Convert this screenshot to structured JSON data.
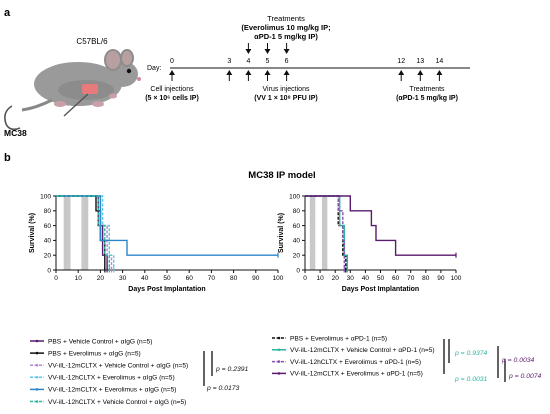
{
  "panel_a": {
    "label": "a",
    "mouse_strain": "C57BL/6",
    "tumor_label": "MC38",
    "day_prefix": "Day:",
    "top_event": {
      "title": "Treatments",
      "line1": "(Everolimus 10 mg/kg IP;",
      "line2": "αPD-1 5 mg/kg IP)"
    },
    "events": [
      {
        "line1": "Cell injections",
        "line2": "(5 × 10⁶ cells IP)"
      },
      {
        "line1": "Virus injections",
        "line2": "(VV 1 × 10⁸ PFU IP)"
      },
      {
        "line1": "Treatments",
        "line2": "(αPD-1 5 mg/kg IP)"
      }
    ],
    "days": [
      {
        "day": 0,
        "label": "0",
        "up": true,
        "down": false
      },
      {
        "day": 3,
        "label": "3",
        "up": true,
        "down": false
      },
      {
        "day": 4,
        "label": "4",
        "up": true,
        "down": true
      },
      {
        "day": 5,
        "label": "5",
        "up": true,
        "down": true
      },
      {
        "day": 6,
        "label": "6",
        "up": true,
        "down": true
      },
      {
        "day": 12,
        "label": "12",
        "up": true,
        "down": false
      },
      {
        "day": 13,
        "label": "13",
        "up": true,
        "down": false
      },
      {
        "day": 14,
        "label": "14",
        "up": true,
        "down": false
      }
    ]
  },
  "panel_b": {
    "label": "b",
    "title": "MC38 IP model",
    "p_values_left": [
      "p = 0.2391",
      "p = 0.0173"
    ],
    "p_values_right": [
      "p = 0.9374",
      "p = 0.0031",
      "p = 0.0034",
      "p = 0.0074"
    ],
    "p_colors": {
      "teal": "#2bb5a3",
      "purple": "#5a1a6e",
      "black": "#111111"
    }
  },
  "chart_data": [
    {
      "type": "line",
      "step": true,
      "xlabel": "Days Post Implantation",
      "ylabel": "Survival (%)",
      "xlim": [
        0,
        100
      ],
      "ylim": [
        0,
        100
      ],
      "xticks": [
        0,
        10,
        20,
        30,
        40,
        50,
        60,
        70,
        80,
        90,
        100
      ],
      "yticks": [
        0,
        20,
        40,
        60,
        80,
        100
      ],
      "treatment_days": [
        4,
        5,
        6,
        12,
        13,
        14
      ],
      "series": [
        {
          "name": "PBS + Vehicle Control + αIgG (n=5)",
          "color": "#5a1a6e",
          "dashed": false,
          "x": [
            0,
            19,
            19,
            21,
            21,
            23,
            23
          ],
          "y": [
            100,
            100,
            60,
            60,
            20,
            20,
            0
          ]
        },
        {
          "name": "PBS + Everolimus + αIgG (n=5)",
          "color": "#111111",
          "dashed": false,
          "x": [
            0,
            18,
            18,
            20,
            20,
            22,
            22
          ],
          "y": [
            100,
            100,
            80,
            80,
            40,
            40,
            0
          ]
        },
        {
          "name": "VV-iIL-12mCLTX + Vehicle Control + αIgG (n=5)",
          "color": "#b48ad1",
          "dashed": true,
          "x": [
            0,
            20,
            20,
            23,
            23,
            25,
            25
          ],
          "y": [
            100,
            100,
            60,
            60,
            20,
            20,
            0
          ]
        },
        {
          "name": "VV-iIL-12hCLTX + Everolimus + αIgG (n=5)",
          "color": "#5dc7e6",
          "dashed": true,
          "x": [
            0,
            21,
            21,
            24,
            24,
            26,
            26
          ],
          "y": [
            100,
            100,
            60,
            60,
            20,
            20,
            0
          ]
        },
        {
          "name": "VV-iIL-12mCLTX + Everolimus + αIgG (n=5)",
          "color": "#2a86c9",
          "dashed": false,
          "x": [
            0,
            20,
            20,
            25,
            25,
            32,
            32,
            100
          ],
          "y": [
            100,
            100,
            40,
            40,
            40,
            40,
            20,
            20
          ]
        },
        {
          "name": "VV-iIL-12hCLTX + Vehicle Control + αIgG (n=5)",
          "color": "#2bb5a3",
          "dashed": true,
          "x": [
            0,
            19,
            19,
            22,
            22,
            24,
            24
          ],
          "y": [
            100,
            100,
            60,
            60,
            20,
            20,
            0
          ]
        }
      ]
    },
    {
      "type": "line",
      "step": true,
      "xlabel": "Days Post Implantation",
      "ylabel": "Survival (%)",
      "xlim": [
        0,
        100
      ],
      "ylim": [
        0,
        100
      ],
      "xticks": [
        0,
        10,
        20,
        30,
        40,
        50,
        60,
        70,
        80,
        90,
        100
      ],
      "yticks": [
        0,
        20,
        40,
        60,
        80,
        100
      ],
      "treatment_days": [
        4,
        5,
        6,
        12,
        13,
        14
      ],
      "series": [
        {
          "name": "PBS + Everolimus + αPD-1 (n=5)",
          "color": "#111111",
          "dashed": true,
          "x": [
            0,
            22,
            22,
            25,
            25,
            27,
            27
          ],
          "y": [
            100,
            100,
            60,
            60,
            20,
            20,
            0
          ]
        },
        {
          "name": "VV-iIL-12mCLTX + Vehicle Control + αPD-1 (n=5)",
          "color": "#2bb5a3",
          "dashed": false,
          "x": [
            0,
            23,
            23,
            26,
            26,
            28,
            28
          ],
          "y": [
            100,
            100,
            60,
            60,
            20,
            20,
            0
          ]
        },
        {
          "name": "VV-iIL-12hCLTX + Everolimus + αPD-1 (n=5)",
          "color": "#8a4fb3",
          "dashed": true,
          "x": [
            0,
            22,
            22,
            25,
            25,
            26,
            26
          ],
          "y": [
            100,
            100,
            80,
            80,
            40,
            40,
            0
          ]
        },
        {
          "name": "VV-iIL-12mCLTX + Everolimus + αPD-1 (n=5)",
          "color": "#5a1a6e",
          "dashed": false,
          "x": [
            0,
            30,
            30,
            44,
            44,
            47,
            47,
            60,
            60,
            100
          ],
          "y": [
            100,
            100,
            80,
            80,
            60,
            60,
            40,
            40,
            20,
            20
          ]
        }
      ]
    }
  ]
}
